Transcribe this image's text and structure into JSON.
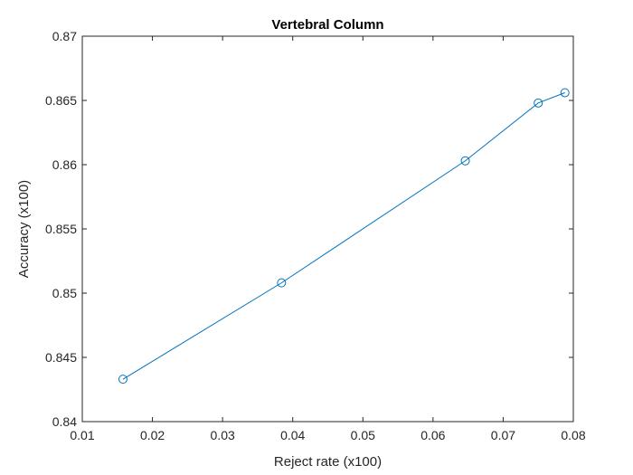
{
  "chart_data": {
    "type": "line",
    "title": "Vertebral Column",
    "xlabel": "Reject rate (x100)",
    "ylabel": "Accuracy (x100)",
    "xlim": [
      0.01,
      0.08
    ],
    "ylim": [
      0.84,
      0.87
    ],
    "xticks": [
      0.01,
      0.02,
      0.03,
      0.04,
      0.05,
      0.06,
      0.07,
      0.08
    ],
    "yticks": [
      0.84,
      0.845,
      0.85,
      0.855,
      0.86,
      0.865,
      0.87
    ],
    "xtick_labels": [
      "0.01",
      "0.02",
      "0.03",
      "0.04",
      "0.05",
      "0.06",
      "0.07",
      "0.08"
    ],
    "ytick_labels": [
      "0.84",
      "0.845",
      "0.85",
      "0.855",
      "0.86",
      "0.865",
      "0.87"
    ],
    "grid": false,
    "series": [
      {
        "x": [
          0.0158,
          0.0384,
          0.0646,
          0.075,
          0.0788
        ],
        "y": [
          0.8433,
          0.8508,
          0.8603,
          0.8648,
          0.8656
        ],
        "color": "#0072BD",
        "marker": "circle"
      }
    ]
  }
}
